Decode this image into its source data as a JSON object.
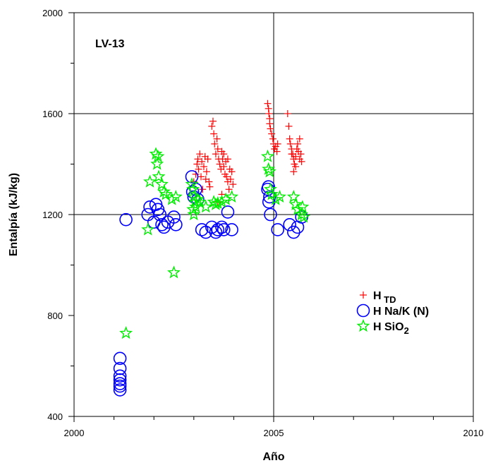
{
  "chart_data": {
    "type": "scatter",
    "panel_label": "LV-13",
    "xlabel": "Año",
    "ylabel": "Entalpía (kJ/kg)",
    "xlim": [
      2000,
      2010
    ],
    "ylim": [
      400,
      2000
    ],
    "x_ticks": [
      "2000",
      "2005",
      "2010"
    ],
    "y_ticks": [
      "400",
      "800",
      "1200",
      "1600",
      "2000"
    ],
    "grid": "major lines at 2005 and at 1200, 1600",
    "legend": {
      "placement": "lower-right",
      "entries": [
        {
          "base": "H",
          "sub": "TD",
          "tail": "",
          "color": "#ff0000",
          "marker": "plus"
        },
        {
          "base": "H Na/K (N)",
          "sub": "",
          "tail": "",
          "color": "#0000ff",
          "marker": "circle"
        },
        {
          "base": "H SiO",
          "sub": "2",
          "tail": "",
          "color": "#00ee00",
          "marker": "star"
        }
      ]
    },
    "series": [
      {
        "name": "H TD",
        "color": "#ff0000",
        "marker": "plus",
        "points": [
          [
            2003.0,
            1330
          ],
          [
            2003.05,
            1360
          ],
          [
            2003.08,
            1400
          ],
          [
            2003.1,
            1420
          ],
          [
            2003.12,
            1380
          ],
          [
            2003.15,
            1440
          ],
          [
            2003.18,
            1350
          ],
          [
            2003.2,
            1410
          ],
          [
            2003.22,
            1300
          ],
          [
            2003.25,
            1390
          ],
          [
            2003.28,
            1430
          ],
          [
            2003.3,
            1340
          ],
          [
            2003.32,
            1370
          ],
          [
            2003.35,
            1420
          ],
          [
            2003.38,
            1330
          ],
          [
            2003.4,
            1310
          ],
          [
            2003.45,
            1550
          ],
          [
            2003.48,
            1570
          ],
          [
            2003.5,
            1520
          ],
          [
            2003.52,
            1480
          ],
          [
            2003.55,
            1440
          ],
          [
            2003.58,
            1500
          ],
          [
            2003.6,
            1460
          ],
          [
            2003.62,
            1420
          ],
          [
            2003.65,
            1400
          ],
          [
            2003.68,
            1380
          ],
          [
            2003.7,
            1450
          ],
          [
            2003.72,
            1420
          ],
          [
            2003.75,
            1390
          ],
          [
            2003.78,
            1360
          ],
          [
            2003.8,
            1410
          ],
          [
            2003.82,
            1350
          ],
          [
            2003.85,
            1330
          ],
          [
            2003.88,
            1300
          ],
          [
            2003.9,
            1380
          ],
          [
            2003.92,
            1340
          ],
          [
            2003.95,
            1370
          ],
          [
            2003.98,
            1320
          ],
          [
            2003.6,
            1250
          ],
          [
            2003.7,
            1280
          ],
          [
            2003.75,
            1440
          ],
          [
            2003.85,
            1420
          ],
          [
            2004.85,
            1640
          ],
          [
            2004.87,
            1620
          ],
          [
            2004.88,
            1600
          ],
          [
            2004.9,
            1560
          ],
          [
            2004.92,
            1540
          ],
          [
            2004.95,
            1520
          ],
          [
            2004.98,
            1500
          ],
          [
            2005.0,
            1480
          ],
          [
            2005.02,
            1460
          ],
          [
            2005.05,
            1470
          ],
          [
            2005.08,
            1450
          ],
          [
            2005.1,
            1480
          ],
          [
            2004.9,
            1580
          ],
          [
            2005.35,
            1600
          ],
          [
            2005.38,
            1550
          ],
          [
            2005.4,
            1500
          ],
          [
            2005.42,
            1480
          ],
          [
            2005.45,
            1460
          ],
          [
            2005.48,
            1440
          ],
          [
            2005.5,
            1420
          ],
          [
            2005.52,
            1400
          ],
          [
            2005.55,
            1430
          ],
          [
            2005.58,
            1460
          ],
          [
            2005.6,
            1480
          ],
          [
            2005.62,
            1450
          ],
          [
            2005.65,
            1420
          ],
          [
            2005.68,
            1440
          ],
          [
            2005.7,
            1410
          ],
          [
            2005.5,
            1370
          ],
          [
            2005.55,
            1390
          ],
          [
            2005.65,
            1500
          ],
          [
            2005.45,
            1440
          ]
        ]
      },
      {
        "name": "H Na/K (N)",
        "color": "#0000ff",
        "marker": "circle",
        "points": [
          [
            2001.15,
            630
          ],
          [
            2001.15,
            590
          ],
          [
            2001.15,
            560
          ],
          [
            2001.15,
            545
          ],
          [
            2001.15,
            530
          ],
          [
            2001.15,
            520
          ],
          [
            2001.15,
            505
          ],
          [
            2001.3,
            1180
          ],
          [
            2001.85,
            1200
          ],
          [
            2001.9,
            1230
          ],
          [
            2002.05,
            1240
          ],
          [
            2002.1,
            1220
          ],
          [
            2002.15,
            1200
          ],
          [
            2002.2,
            1160
          ],
          [
            2002.25,
            1150
          ],
          [
            2002.35,
            1170
          ],
          [
            2002.5,
            1190
          ],
          [
            2002.55,
            1160
          ],
          [
            2002.0,
            1170
          ],
          [
            2002.95,
            1350
          ],
          [
            2002.97,
            1290
          ],
          [
            2003.0,
            1270
          ],
          [
            2003.05,
            1300
          ],
          [
            2003.1,
            1260
          ],
          [
            2003.2,
            1140
          ],
          [
            2003.3,
            1130
          ],
          [
            2003.45,
            1150
          ],
          [
            2003.55,
            1130
          ],
          [
            2003.6,
            1140
          ],
          [
            2003.7,
            1150
          ],
          [
            2003.75,
            1140
          ],
          [
            2003.85,
            1210
          ],
          [
            2003.95,
            1140
          ],
          [
            2004.85,
            1300
          ],
          [
            2004.87,
            1310
          ],
          [
            2004.9,
            1270
          ],
          [
            2004.88,
            1250
          ],
          [
            2004.92,
            1200
          ],
          [
            2005.1,
            1140
          ],
          [
            2005.4,
            1160
          ],
          [
            2005.5,
            1130
          ],
          [
            2005.6,
            1150
          ],
          [
            2005.7,
            1190
          ]
        ]
      },
      {
        "name": "H SiO2",
        "color": "#00ee00",
        "marker": "star",
        "points": [
          [
            2001.3,
            730
          ],
          [
            2001.85,
            1140
          ],
          [
            2001.9,
            1330
          ],
          [
            2002.05,
            1440
          ],
          [
            2002.1,
            1430
          ],
          [
            2002.08,
            1400
          ],
          [
            2002.12,
            1350
          ],
          [
            2002.2,
            1320
          ],
          [
            2002.25,
            1290
          ],
          [
            2002.3,
            1280
          ],
          [
            2002.45,
            1260
          ],
          [
            2002.55,
            1270
          ],
          [
            2002.5,
            970
          ],
          [
            2002.95,
            1320
          ],
          [
            2002.98,
            1300
          ],
          [
            2003.0,
            1270
          ],
          [
            2003.03,
            1250
          ],
          [
            2003.05,
            1230
          ],
          [
            2003.0,
            1200
          ],
          [
            2002.98,
            1220
          ],
          [
            2003.1,
            1260
          ],
          [
            2003.15,
            1250
          ],
          [
            2003.3,
            1230
          ],
          [
            2003.5,
            1250
          ],
          [
            2003.55,
            1240
          ],
          [
            2003.7,
            1250
          ],
          [
            2003.8,
            1260
          ],
          [
            2003.95,
            1270
          ],
          [
            2003.6,
            1245
          ],
          [
            2004.85,
            1430
          ],
          [
            2004.87,
            1380
          ],
          [
            2004.9,
            1370
          ],
          [
            2004.92,
            1300
          ],
          [
            2004.95,
            1280
          ],
          [
            2005.05,
            1260
          ],
          [
            2005.15,
            1270
          ],
          [
            2005.5,
            1270
          ],
          [
            2005.55,
            1240
          ],
          [
            2005.6,
            1220
          ],
          [
            2005.7,
            1200
          ],
          [
            2005.75,
            1190
          ],
          [
            2005.72,
            1230
          ]
        ]
      }
    ]
  }
}
